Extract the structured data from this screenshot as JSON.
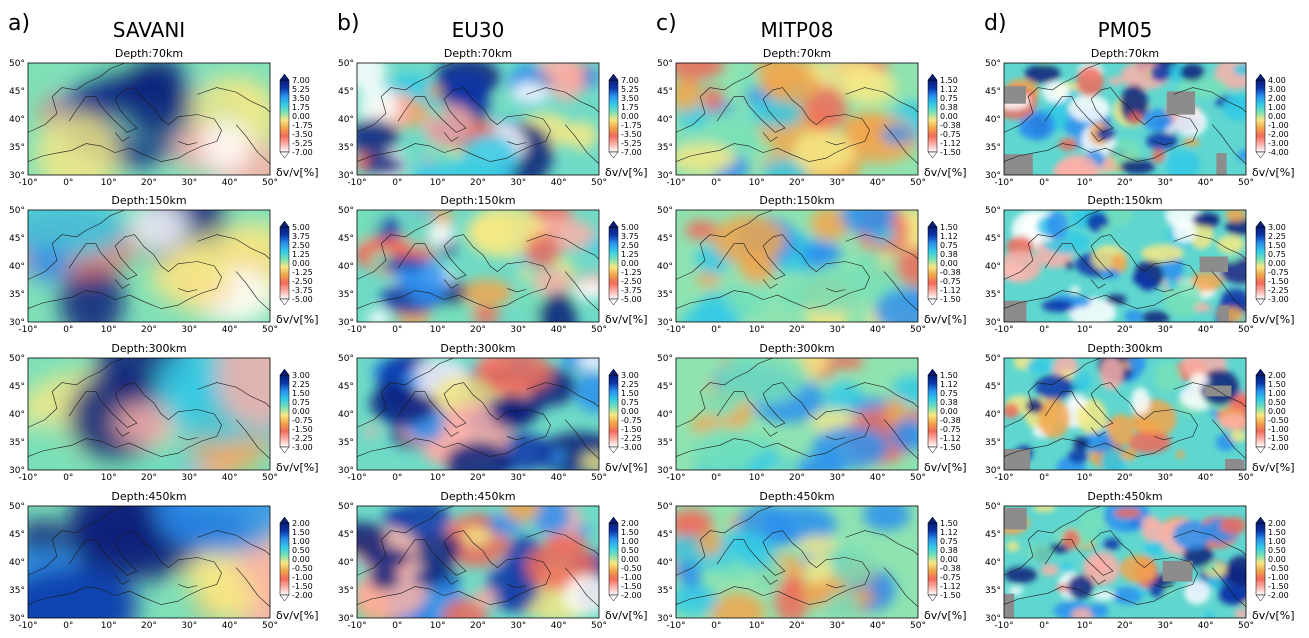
{
  "columns": [
    {
      "letter": "a)",
      "model": "SAVANI",
      "scales": [
        "7.00",
        "5.00",
        "3.00",
        "2.00"
      ]
    },
    {
      "letter": "b)",
      "model": "EU30",
      "scales": [
        "7.00",
        "5.00",
        "3.00",
        "2.00"
      ]
    },
    {
      "letter": "c)",
      "model": "MITP08",
      "scales": [
        "1.50",
        "1.50",
        "1.50",
        "1.50"
      ]
    },
    {
      "letter": "d)",
      "model": "PM05",
      "scales": [
        "4.00",
        "3.00",
        "2.00",
        "2.00"
      ]
    }
  ],
  "depths": [
    "Depth:70km",
    "Depth:150km",
    "Depth:300km",
    "Depth:450km"
  ],
  "lon_ticks": [
    "-10°",
    "0°",
    "10°",
    "20°",
    "30°",
    "40°",
    "50°"
  ],
  "lat_ticks": [
    "50°",
    "45°",
    "40°",
    "35°",
    "30°"
  ],
  "colorbar_label": "δv/v[%]",
  "colorbar_ticks": {
    "7.00": [
      "7.00",
      "5.25",
      "3.50",
      "1.75",
      "0.00",
      "-1.75",
      "-3.50",
      "-5.25",
      "-7.00"
    ],
    "5.00": [
      "5.00",
      "3.75",
      "2.50",
      "1.25",
      "0.00",
      "-1.25",
      "-2.50",
      "-3.75",
      "-5.00"
    ],
    "3.00": [
      "3.00",
      "2.25",
      "1.50",
      "0.75",
      "0.00",
      "-0.75",
      "-1.50",
      "-2.25",
      "-3.00"
    ],
    "2.00": [
      "2.00",
      "1.50",
      "1.00",
      "0.50",
      "0.00",
      "-0.50",
      "-1.00",
      "-1.50",
      "-2.00"
    ],
    "1.50": [
      "1.50",
      "1.12",
      "0.75",
      "0.38",
      "0.00",
      "-0.38",
      "-0.75",
      "-1.12",
      "-1.50"
    ],
    "4.00": [
      "4.00",
      "3.00",
      "2.00",
      "1.00",
      "0.00",
      "-1.00",
      "-2.00",
      "-3.00",
      "-4.00"
    ]
  },
  "colors": {
    "palette": [
      "#ffffff",
      "#fbb0a8",
      "#f06a5a",
      "#f2a64c",
      "#f6e985",
      "#77e0b8",
      "#32c9e6",
      "#2a8fee",
      "#0b35a8",
      "#0a1f7a"
    ],
    "nodata": "#8c8c8c",
    "coast": "#1a1a1a"
  }
}
